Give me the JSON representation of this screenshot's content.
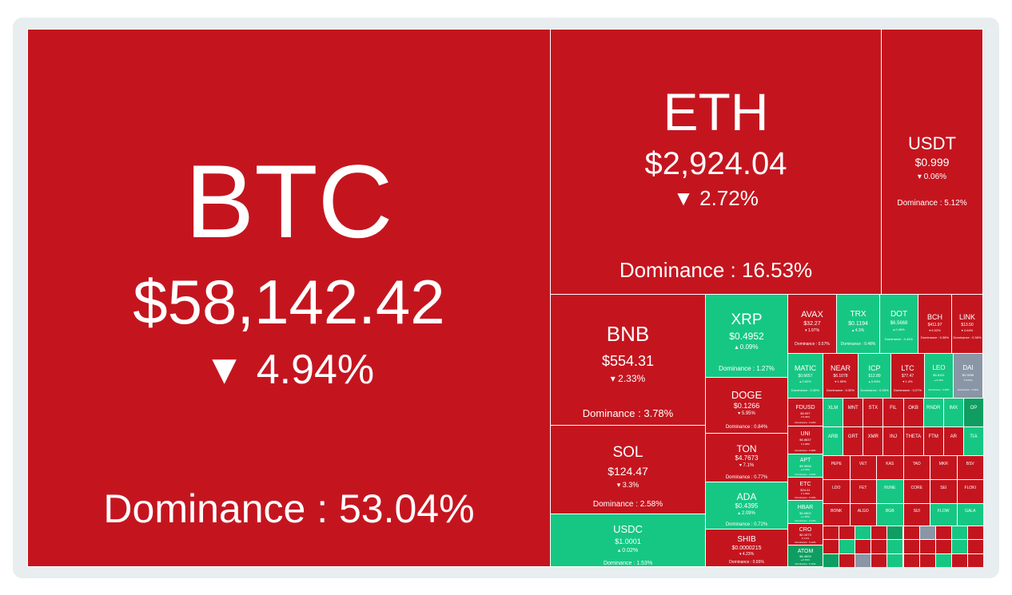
{
  "colors": {
    "down": "#c4151f",
    "up": "#16c784",
    "up_dark": "#0e9e61",
    "stable": "#8a96a5"
  },
  "dominance_label": "Dominance :",
  "tiles": {
    "btc": {
      "symbol": "BTC",
      "price": "$58,142.42",
      "change": "▼ 4.94%",
      "dominance": "Dominance : 53.04%"
    },
    "eth": {
      "symbol": "ETH",
      "price": "$2,924.04",
      "change": "▼ 2.72%",
      "dominance": "Dominance : 16.53%"
    },
    "usdt": {
      "symbol": "USDT",
      "price": "$0.999",
      "change": "▾ 0.06%",
      "dominance": "Dominance : 5.12%"
    },
    "bnb": {
      "symbol": "BNB",
      "price": "$554.31",
      "change": "▾ 2.33%",
      "dominance": "Dominance : 3.78%"
    },
    "sol": {
      "symbol": "SOL",
      "price": "$124.47",
      "change": "▾ 3.3%",
      "dominance": "Dominance : 2.58%"
    },
    "usdc": {
      "symbol": "USDC",
      "price": "$1.0001",
      "change": "▴ 0.02%",
      "dominance": "Dominance : 1.53%"
    },
    "xrp": {
      "symbol": "XRP",
      "price": "$0.4952",
      "change": "▴ 0.09%",
      "dominance": "Dominance : 1.27%"
    },
    "doge": {
      "symbol": "DOGE",
      "price": "$0.1266",
      "change": "▾ 5.95%",
      "dominance": "Dominance : 0.84%"
    },
    "ton": {
      "symbol": "TON",
      "price": "$4.7673",
      "change": "▾ 7.1%",
      "dominance": "Dominance : 0.77%"
    },
    "ada": {
      "symbol": "ADA",
      "price": "$0.4395",
      "change": "▴ 2.09%",
      "dominance": "Dominance : 0.72%"
    },
    "shib": {
      "symbol": "SHIB",
      "price": "$0.0000215",
      "change": "▾ 4.23%",
      "dominance": "Dominance : 0.65%"
    },
    "avax": {
      "symbol": "AVAX",
      "price": "$32.27",
      "change": "▾ 1.97%",
      "dominance": "Dominance : 0.57%"
    },
    "trx": {
      "symbol": "TRX",
      "price": "$0.1194",
      "change": "▴ 4.3%",
      "dominance": "Dominance : 0.48%"
    },
    "dot": {
      "symbol": "DOT",
      "price": "$6.5668",
      "change": "▴ 0.46%",
      "dominance": "Dominance : 0.44%"
    },
    "bch": {
      "symbol": "BCH",
      "price": "$411.97",
      "change": "▾ 6.02%",
      "dominance": "Dominance : 0.38%"
    },
    "link": {
      "symbol": "LINK",
      "price": "$13.50",
      "change": "▾ 4.64%",
      "dominance": "Dominance : 0.36%"
    },
    "matic": {
      "symbol": "MATIC",
      "price": "$0.6657",
      "change": "▴ 0.62%",
      "dominance": "Dominance : 0.30%"
    },
    "near": {
      "symbol": "NEAR",
      "price": "$6.1078",
      "change": "▾ 1.55%",
      "dominance": "Dominance : 0.30%"
    },
    "icp": {
      "symbol": "ICP",
      "price": "$12.89",
      "change": "▴ 0.65%",
      "dominance": "Dominance : 0.26%"
    },
    "ltc": {
      "symbol": "LTC",
      "price": "$77.47",
      "change": "▾ 1.4%",
      "dominance": "Dominance : 0.27%"
    },
    "leo": {
      "symbol": "LEO",
      "price": "$5.8151",
      "change": "▴ 0.44%",
      "dominance": "Dominance : 0.25%"
    },
    "dai": {
      "symbol": "DAI",
      "price": "$0.9998",
      "change": "▾ 0.01%",
      "dominance": "Dominance : 0.24%"
    },
    "fdusd": {
      "symbol": "FDUSD",
      "price": "$0.997",
      "change": "▾ 0.06%",
      "dominance": "Dominance : 0.16%"
    },
    "uni": {
      "symbol": "UNI",
      "price": "$6.8637",
      "change": "▾ 4.08%",
      "dominance": "Dominance : 0.18%"
    },
    "apt": {
      "symbol": "APT",
      "price": "$5.5958",
      "change": "▴ 0.45%",
      "dominance": "Dominance : 0.15%"
    },
    "etc": {
      "symbol": "ETC",
      "price": "$24.01",
      "change": "▾ 1.06%",
      "dominance": "Dominance : 0.15%"
    },
    "hbar": {
      "symbol": "HBAR",
      "price": "$0.0802",
      "change": "▴ 1.65%",
      "dominance": "Dominance : 0.13%"
    },
    "cro": {
      "symbol": "CRO",
      "price": "$0.1073",
      "change": "▾ 4.1%",
      "dominance": "Dominance : 0.12%"
    },
    "atom": {
      "symbol": "ATOM",
      "price": "$6.4609",
      "change": "▴ 0.53%",
      "dominance": "Dominance : 0.11%"
    }
  },
  "small_tiles": [
    {
      "symbol": "XLM",
      "color": "green"
    },
    {
      "symbol": "MNT",
      "color": "red"
    },
    {
      "symbol": "STX",
      "color": "red"
    },
    {
      "symbol": "FIL",
      "color": "red"
    },
    {
      "symbol": "OKB",
      "color": "red"
    },
    {
      "symbol": "RNDR",
      "color": "green"
    },
    {
      "symbol": "IMX",
      "color": "green"
    },
    {
      "symbol": "OP",
      "color": "dgreen"
    },
    {
      "symbol": "ARB",
      "color": "green"
    },
    {
      "symbol": "GRT",
      "color": "red"
    },
    {
      "symbol": "XMR",
      "color": "red"
    },
    {
      "symbol": "INJ",
      "color": "red"
    },
    {
      "symbol": "THETA",
      "color": "red"
    },
    {
      "symbol": "FTM",
      "color": "red"
    },
    {
      "symbol": "AR",
      "color": "red"
    },
    {
      "symbol": "TIA",
      "color": "green"
    },
    {
      "symbol": "PEPE",
      "color": "red"
    },
    {
      "symbol": "VET",
      "color": "red"
    },
    {
      "symbol": "KAS",
      "color": "red"
    },
    {
      "symbol": "TAO",
      "color": "red"
    },
    {
      "symbol": "MKR",
      "color": "red"
    },
    {
      "symbol": "BSV",
      "color": "red"
    },
    {
      "symbol": "LDO",
      "color": "red"
    },
    {
      "symbol": "FET",
      "color": "red"
    },
    {
      "symbol": "RUNE",
      "color": "green"
    },
    {
      "symbol": "CORE",
      "color": "red"
    },
    {
      "symbol": "SEI",
      "color": "red"
    },
    {
      "symbol": "FLOKI",
      "color": "red"
    },
    {
      "symbol": "BONK",
      "color": "red"
    },
    {
      "symbol": "ALGO",
      "color": "red"
    },
    {
      "symbol": "BGB",
      "color": "green"
    },
    {
      "symbol": "SUI",
      "color": "red"
    },
    {
      "symbol": "FLOW",
      "color": "green"
    },
    {
      "symbol": "GALA",
      "color": "green"
    }
  ]
}
